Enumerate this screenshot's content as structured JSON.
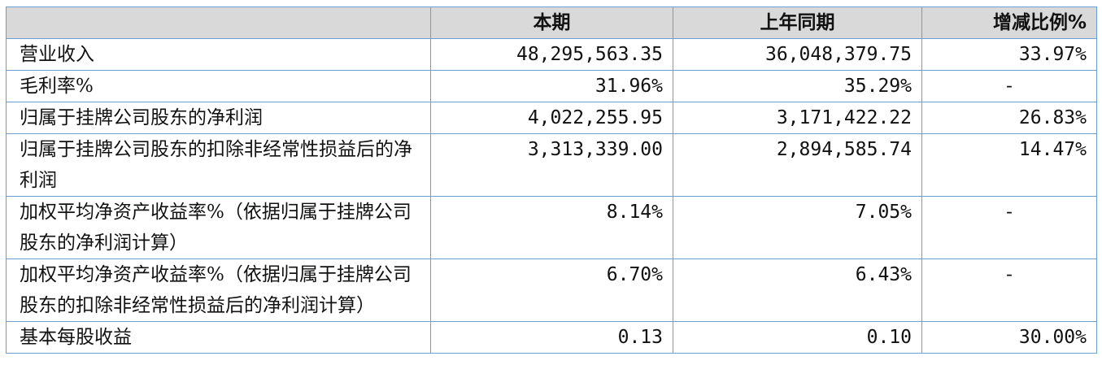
{
  "headers": [
    "",
    "本期",
    "上年同期",
    "增减比例%"
  ],
  "rows": [
    {
      "label": "营业收入",
      "current": "48,295,563.35",
      "prior": "36,048,379.75",
      "change": "33.97%"
    },
    {
      "label": "毛利率%",
      "current": "31.96%",
      "prior": "35.29%",
      "change": "-"
    },
    {
      "label": "归属于挂牌公司股东的净利润",
      "current": "4,022,255.95",
      "prior": "3,171,422.22",
      "change": "26.83%"
    },
    {
      "label": "归属于挂牌公司股东的扣除非经常性损益后的净利润",
      "current": "3,313,339.00",
      "prior": "2,894,585.74",
      "change": "14.47%"
    },
    {
      "label": "加权平均净资产收益率%（依据归属于挂牌公司股东的净利润计算）",
      "current": "8.14%",
      "prior": "7.05%",
      "change": "-"
    },
    {
      "label": "加权平均净资产收益率%（依据归属于挂牌公司股东的扣除非经常性损益后的净利润计算）",
      "current": "6.70%",
      "prior": "6.43%",
      "change": "-"
    },
    {
      "label": "基本每股收益",
      "current": "0.13",
      "prior": "0.10",
      "change": "30.00%"
    }
  ]
}
